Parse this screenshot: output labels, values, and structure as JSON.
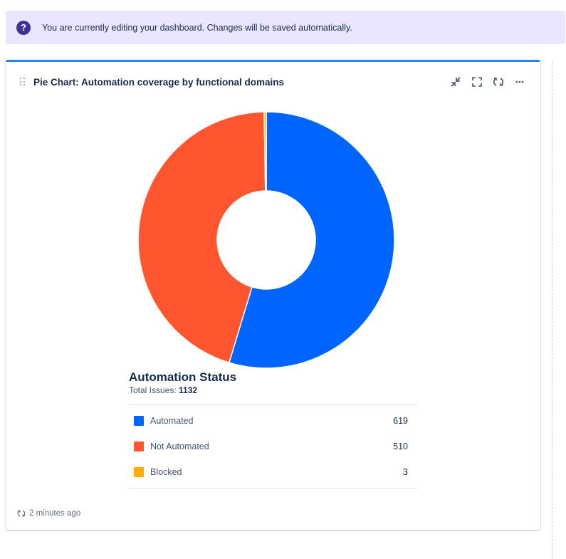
{
  "banner": {
    "icon": "question-circle-icon",
    "message": "You are currently editing your dashboard. Changes will be saved automatically."
  },
  "gadget": {
    "title": "Pie Chart: Automation coverage by functional domains",
    "tools": [
      "minimize-icon",
      "fullscreen-icon",
      "refresh-icon",
      "more-icon"
    ],
    "footer_text": "2 minutes ago"
  },
  "legend": {
    "title": "Automation Status",
    "total_label": "Total Issues:",
    "total_value": "1132"
  },
  "chart_data": {
    "type": "pie",
    "style": "donut",
    "categories": [
      "Automated",
      "Not Automated",
      "Blocked"
    ],
    "values": [
      619,
      510,
      3
    ],
    "colors": [
      "#0065ff",
      "#ff5630",
      "#ffab00"
    ]
  },
  "colors": {
    "accent": "#2684ff",
    "banner_bg": "#eae6ff",
    "banner_icon": "#403294"
  }
}
